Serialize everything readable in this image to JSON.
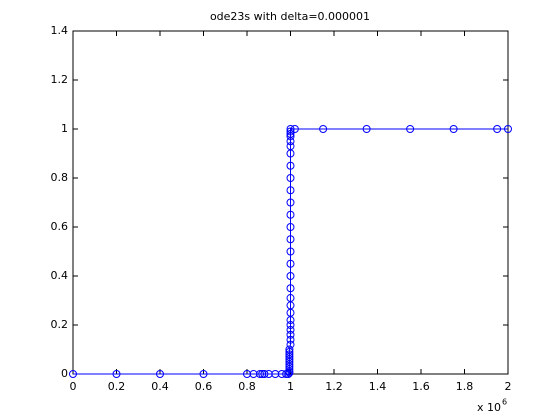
{
  "chart_data": {
    "type": "line",
    "title": "ode23s with delta=0.000001",
    "x_multiplier": {
      "base": "x 10",
      "exponent": "6"
    },
    "x": [
      0,
      0.2,
      0.4,
      0.6,
      0.8,
      0.83,
      0.86,
      0.87,
      0.88,
      0.9,
      0.93,
      0.96,
      0.98,
      0.99,
      0.995,
      0.995,
      0.995,
      0.995,
      0.995,
      0.995,
      0.995,
      0.995,
      0.995,
      0.995,
      0.995,
      1,
      1,
      1,
      1,
      1,
      1,
      1,
      1,
      1,
      1,
      1,
      1,
      1,
      1,
      1,
      1,
      1,
      1,
      1,
      1,
      1,
      1,
      1,
      1,
      1,
      1,
      1,
      1.02,
      1.15,
      1.35,
      1.55,
      1.75,
      1.95,
      2
    ],
    "series": [
      {
        "color": "#0000ff",
        "marker": "circle",
        "values": [
          0,
          0,
          0,
          0,
          0,
          0,
          0,
          0,
          0,
          0,
          0,
          0,
          0,
          0,
          0.005,
          0.01,
          0.02,
          0.03,
          0.04,
          0.05,
          0.06,
          0.07,
          0.08,
          0.09,
          0.1,
          0.12,
          0.14,
          0.16,
          0.18,
          0.2,
          0.22,
          0.25,
          0.28,
          0.31,
          0.35,
          0.4,
          0.45,
          0.5,
          0.55,
          0.6,
          0.65,
          0.7,
          0.75,
          0.8,
          0.85,
          0.9,
          0.93,
          0.95,
          0.97,
          0.98,
          0.99,
          1,
          1,
          1,
          1,
          1,
          1,
          1,
          1
        ]
      }
    ],
    "xlim": [
      0,
      2
    ],
    "xticks": [
      0,
      0.2,
      0.4,
      0.6,
      0.8,
      1,
      1.2,
      1.4,
      1.6,
      1.8,
      2
    ],
    "ylim": [
      0,
      1.4
    ],
    "yticks": [
      0,
      0.2,
      0.4,
      0.6,
      0.8,
      1,
      1.2,
      1.4
    ]
  }
}
